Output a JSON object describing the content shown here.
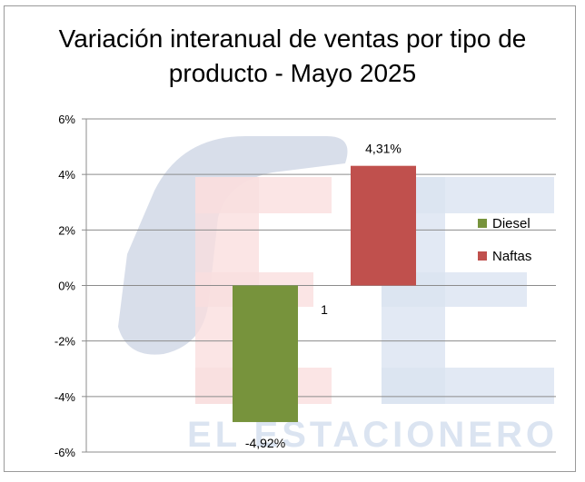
{
  "chart_data": {
    "type": "bar",
    "title_lines": [
      "Variación interanual  de ventas por tipo de",
      "producto - Mayo 2025"
    ],
    "categories": [
      "1"
    ],
    "series": [
      {
        "name": "Diesel",
        "values": [
          -4.92
        ],
        "label": "-4,92%",
        "color": "#77933C"
      },
      {
        "name": "Naftas",
        "values": [
          4.31
        ],
        "label": "4,31%",
        "color": "#C0504D"
      }
    ],
    "ylim": [
      -6,
      6
    ],
    "yticks": [
      6,
      4,
      2,
      0,
      -2,
      -4,
      -6
    ],
    "ytick_labels": [
      "6%",
      "4%",
      "2%",
      "0%",
      "-2%",
      "-4%",
      "-6%"
    ],
    "grid": true,
    "legend_position": "right",
    "watermark_text": "EL ESTACIONERO"
  }
}
